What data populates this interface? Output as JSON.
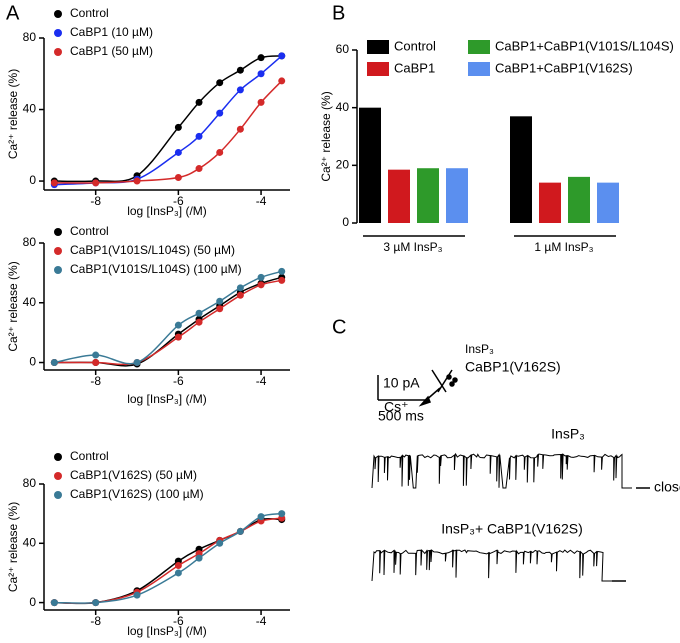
{
  "chart_data": [
    {
      "type": "line",
      "x_label": "log [InsP₃] (/M)",
      "y_label": "Ca²⁺ release (%)",
      "x": [
        -9,
        -8,
        -7,
        -6,
        -5.5,
        -5,
        -4.5,
        -4,
        -3.5
      ],
      "xlim": [
        -9.25,
        -3.3
      ],
      "xticks": [
        -8,
        -6,
        -4
      ],
      "ylim": [
        -5,
        80
      ],
      "yticks": [
        0,
        40,
        80
      ],
      "series": [
        {
          "name": "Control",
          "color": "#000000",
          "values": [
            0,
            0,
            3,
            30,
            44,
            55,
            62,
            69,
            70
          ]
        },
        {
          "name": "CaBP1  (10 µM)",
          "color": "#1a2ef0",
          "values": [
            -2,
            -1,
            1,
            16,
            25,
            38,
            51,
            60,
            70
          ]
        },
        {
          "name": "CaBP1  (50 µM)",
          "color": "#d42a2a",
          "values": [
            -1,
            -1,
            0,
            2,
            7,
            16,
            29,
            44,
            56
          ]
        }
      ]
    },
    {
      "type": "line",
      "x_label": "log [InsP₃] (/M)",
      "y_label": "Ca²⁺ release (%)",
      "x": [
        -9,
        -8,
        -7,
        -6,
        -5.5,
        -5,
        -4.5,
        -4,
        -3.5
      ],
      "xlim": [
        -9.25,
        -3.3
      ],
      "xticks": [
        -8,
        -6,
        -4
      ],
      "ylim": [
        -5,
        80
      ],
      "yticks": [
        0,
        40,
        80
      ],
      "series": [
        {
          "name": "Control",
          "color": "#000000",
          "values": [
            0,
            0,
            -1,
            19,
            29,
            38,
            47,
            53,
            57
          ]
        },
        {
          "name": "CaBP1(V101S/L104S) (50 µM)",
          "color": "#d42a2a",
          "values": [
            0,
            0,
            0,
            17,
            27,
            36,
            45,
            52,
            55
          ]
        },
        {
          "name": "CaBP1(V101S/L104S) (100 µM)",
          "color": "#3a7a96",
          "values": [
            0,
            5,
            0,
            25,
            33,
            41,
            50,
            57,
            61
          ]
        }
      ]
    },
    {
      "type": "line",
      "x_label": "log [InsP₃] (/M)",
      "y_label": "Ca²⁺ release (%)",
      "x": [
        -9,
        -8,
        -7,
        -6,
        -5.5,
        -5,
        -4.5,
        -4,
        -3.5
      ],
      "xlim": [
        -9.25,
        -3.3
      ],
      "xticks": [
        -8,
        -6,
        -4
      ],
      "ylim": [
        -5,
        80
      ],
      "yticks": [
        0,
        40,
        80
      ],
      "series": [
        {
          "name": "Control",
          "color": "#000000",
          "values": [
            0,
            0,
            8,
            28,
            36,
            42,
            48,
            56,
            56
          ]
        },
        {
          "name": "CaBP1(V162S) (50 µM)",
          "color": "#d42a2a",
          "values": [
            0,
            0,
            7,
            25,
            33,
            42,
            48,
            55,
            57
          ]
        },
        {
          "name": "CaBP1(V162S) (100 µM)",
          "color": "#3a7a96",
          "values": [
            0,
            0,
            5,
            20,
            30,
            40,
            48,
            58,
            60
          ]
        }
      ]
    },
    {
      "type": "bar",
      "y_label": "Ca²⁺ release (%)",
      "categories": [
        "3 µM InsP₃",
        "1 µM InsP₃"
      ],
      "ylim": [
        0,
        60
      ],
      "yticks": [
        0,
        20,
        40,
        60
      ],
      "series": [
        {
          "name": "Control",
          "color": "#000000",
          "values": [
            40,
            37
          ]
        },
        {
          "name": "CaBP1",
          "color": "#d0191e",
          "values": [
            18.5,
            14
          ]
        },
        {
          "name": "CaBP1+CaBP1(V101S/L104S)",
          "color": "#2e9a2a",
          "values": [
            19,
            16
          ]
        },
        {
          "name": "CaBP1+CaBP1(V162S)",
          "color": "#5b8fef",
          "values": [
            19,
            14
          ]
        }
      ]
    }
  ],
  "panel_labels": [
    "A",
    "B",
    "C"
  ],
  "traces": {
    "condition_top": "InsP₃",
    "condition_bottom": "CaBP1(V162S)",
    "scale_current": "10 pA",
    "scale_time": "500 ms",
    "ion": "Cs⁺",
    "trace1_label": "InsP₃",
    "closed_label": "closed",
    "trace2_label": "InsP₃+ CaBP1(V162S)"
  }
}
